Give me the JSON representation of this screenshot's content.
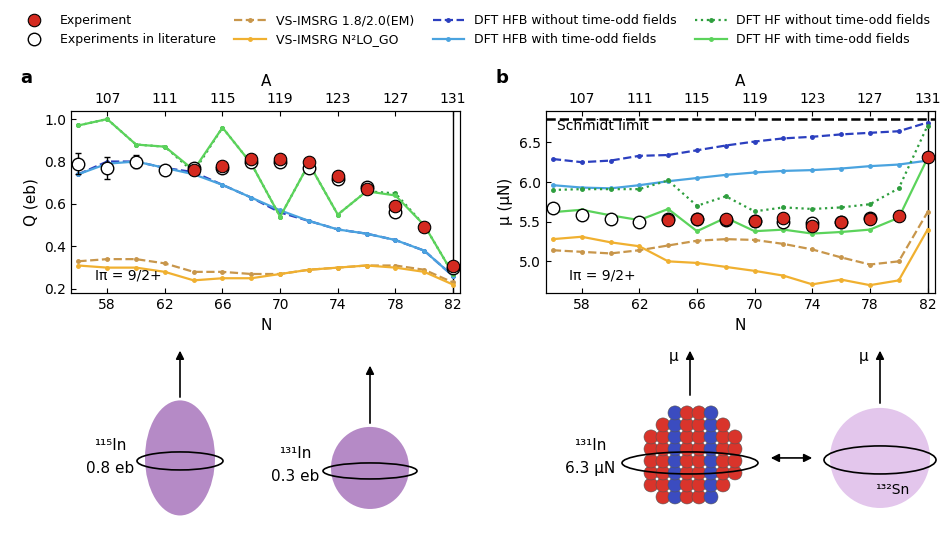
{
  "chart_data": [
    {
      "type": "line",
      "panel": "a",
      "x_label": "N",
      "x2_label": "A",
      "y_label": "Q (eb)",
      "xlim": [
        55.5,
        82.5
      ],
      "xticks": [
        58,
        62,
        66,
        70,
        74,
        78,
        82
      ],
      "x2lim": [
        104.5,
        131.5
      ],
      "x2ticks": [
        107,
        111,
        115,
        119,
        123,
        127,
        131
      ],
      "ylim": [
        0.18,
        1.04
      ],
      "yticks": [
        0.2,
        0.4,
        0.6,
        0.8,
        1.0
      ],
      "vline": 82,
      "legend": "top",
      "annotations": [
        "Iπ = 9/2+"
      ],
      "illustrations": [
        {
          "nucleus": "¹¹⁵In",
          "text": "0.8 eb"
        },
        {
          "nucleus": "¹³¹In",
          "text": "0.3 eb"
        }
      ],
      "series": [
        {
          "name": "Experiment",
          "color": "#d42a20",
          "marker": "filled circle",
          "line_style": "none",
          "x": [
            64,
            66,
            68,
            70,
            72,
            74,
            76,
            78,
            80,
            82
          ],
          "values": [
            0.76,
            0.78,
            0.81,
            0.81,
            0.8,
            0.73,
            0.67,
            0.59,
            0.49,
            0.31
          ]
        },
        {
          "name": "Experiments in literature",
          "color": "#000000",
          "marker": "open circle",
          "line_style": "none",
          "x": [
            56,
            58,
            60,
            62,
            64,
            66,
            68,
            70,
            72,
            74,
            76,
            78,
            82
          ],
          "values": [
            0.79,
            0.77,
            0.8,
            0.76,
            0.77,
            0.77,
            0.8,
            0.8,
            0.77,
            0.72,
            0.68,
            0.56,
            0.3
          ],
          "errors": [
            0.05,
            0.05,
            0.03,
            0.02,
            0.01,
            0.01,
            0.01,
            0.01,
            0.01,
            0.01,
            0.02,
            0.02,
            0.01
          ]
        },
        {
          "name": "VS-IMSRG 1.8/2.0(EM)",
          "color": "#c8964b",
          "marker": "dot",
          "line_style": "dashed",
          "x": [
            56,
            58,
            60,
            62,
            64,
            66,
            68,
            70,
            72,
            74,
            76,
            78,
            80,
            82
          ],
          "values": [
            0.33,
            0.34,
            0.34,
            0.32,
            0.28,
            0.28,
            0.27,
            0.27,
            0.29,
            0.3,
            0.31,
            0.31,
            0.29,
            0.23
          ]
        },
        {
          "name": "VS-IMSRG N²LO_GO",
          "color": "#f0b030",
          "marker": "dot",
          "line_style": "solid",
          "x": [
            56,
            58,
            60,
            62,
            64,
            66,
            68,
            70,
            72,
            74,
            76,
            78,
            80,
            82
          ],
          "values": [
            0.31,
            0.3,
            0.3,
            0.28,
            0.24,
            0.25,
            0.25,
            0.27,
            0.29,
            0.3,
            0.31,
            0.3,
            0.28,
            0.22
          ]
        },
        {
          "name": "DFT HFB without time-odd fields",
          "color": "#2b3fbf",
          "marker": "dot",
          "line_style": "dashed",
          "x": [
            56,
            58,
            60,
            62,
            64,
            66,
            68,
            70,
            72,
            74,
            76,
            78,
            80,
            82
          ],
          "values": [
            0.74,
            0.8,
            0.8,
            0.77,
            0.75,
            0.69,
            0.63,
            0.56,
            0.52,
            0.48,
            0.46,
            0.43,
            0.38,
            0.26
          ]
        },
        {
          "name": "DFT HFB with time-odd fields",
          "color": "#4aa3df",
          "marker": "dot",
          "line_style": "solid",
          "x": [
            56,
            58,
            60,
            62,
            64,
            66,
            68,
            70,
            72,
            74,
            76,
            78,
            80,
            82
          ],
          "values": [
            0.74,
            0.79,
            0.8,
            0.77,
            0.74,
            0.69,
            0.63,
            0.57,
            0.52,
            0.48,
            0.46,
            0.43,
            0.38,
            0.26
          ]
        },
        {
          "name": "DFT HF without time-odd fields",
          "color": "#2e9e3e",
          "marker": "dot",
          "line_style": "dotted",
          "x": [
            56,
            58,
            60,
            62,
            64,
            66,
            68,
            70,
            72,
            74,
            76,
            78,
            80,
            82
          ],
          "values": [
            0.97,
            1.0,
            0.88,
            0.87,
            0.75,
            0.96,
            0.79,
            0.54,
            0.79,
            0.55,
            0.66,
            0.65,
            0.5,
            0.27
          ]
        },
        {
          "name": "DFT HF with time-odd fields",
          "color": "#5bd35b",
          "marker": "dot",
          "line_style": "solid",
          "x": [
            56,
            58,
            60,
            62,
            64,
            66,
            68,
            70,
            72,
            74,
            76,
            78,
            80,
            82
          ],
          "values": [
            0.97,
            1.0,
            0.88,
            0.87,
            0.76,
            0.96,
            0.79,
            0.54,
            0.79,
            0.55,
            0.66,
            0.64,
            0.5,
            0.27
          ]
        }
      ]
    },
    {
      "type": "line",
      "panel": "b",
      "x_label": "N",
      "x2_label": "A",
      "y_label": "μ (μN)",
      "xlim": [
        55.5,
        82.5
      ],
      "xticks": [
        58,
        62,
        66,
        70,
        74,
        78,
        82
      ],
      "x2lim": [
        104.5,
        131.5
      ],
      "x2ticks": [
        107,
        111,
        115,
        119,
        123,
        127,
        131
      ],
      "ylim": [
        4.6,
        6.9
      ],
      "yticks": [
        5.0,
        5.5,
        6.0,
        6.5
      ],
      "vline": 82,
      "hline": {
        "value": 6.79,
        "label": "Schmidt limit"
      },
      "annotations": [
        "Iπ = 9/2+"
      ],
      "illustrations": [
        {
          "nucleus": "¹³¹In",
          "text": "6.3 μN",
          "arrow_label": "μ"
        },
        {
          "nucleus": "¹³²Sn",
          "arrow_label": "μ"
        }
      ],
      "series": [
        {
          "name": "Experiment",
          "color": "#d42a20",
          "marker": "filled circle",
          "line_style": "none",
          "x": [
            64,
            66,
            68,
            70,
            72,
            74,
            76,
            78,
            80,
            82
          ],
          "values": [
            5.52,
            5.53,
            5.54,
            5.51,
            5.55,
            5.44,
            5.5,
            5.53,
            5.57,
            6.31
          ],
          "errors": [
            0.03,
            0.03,
            0.03,
            0.06,
            0.06,
            0.03,
            0.03,
            0.03,
            0.03,
            0.03
          ]
        },
        {
          "name": "Experiments in literature",
          "color": "#000000",
          "marker": "open circle",
          "line_style": "none",
          "x": [
            56,
            58,
            60,
            62,
            64,
            66,
            68,
            70,
            72,
            74,
            76,
            78
          ],
          "values": [
            5.67,
            5.58,
            5.53,
            5.5,
            5.53,
            5.53,
            5.52,
            5.51,
            5.5,
            5.48,
            5.5,
            5.55
          ],
          "errors": [
            0.01,
            0.01,
            0.01,
            0.01,
            0.01,
            0.01,
            0.01,
            0.06,
            0.01,
            0.01,
            0.01,
            0.01
          ]
        },
        {
          "name": "VS-IMSRG 1.8/2.0(EM)",
          "color": "#c8964b",
          "marker": "dot",
          "line_style": "dashed",
          "x": [
            56,
            58,
            60,
            62,
            64,
            66,
            68,
            70,
            72,
            74,
            76,
            78,
            80,
            82
          ],
          "values": [
            5.14,
            5.12,
            5.1,
            5.14,
            5.2,
            5.26,
            5.28,
            5.27,
            5.22,
            5.15,
            5.05,
            4.96,
            5.0,
            5.62
          ]
        },
        {
          "name": "VS-IMSRG N²LO_GO",
          "color": "#f0b030",
          "marker": "dot",
          "line_style": "solid",
          "x": [
            56,
            58,
            60,
            62,
            64,
            66,
            68,
            70,
            72,
            74,
            76,
            78,
            80,
            82
          ],
          "values": [
            5.28,
            5.31,
            5.24,
            5.19,
            5.0,
            4.98,
            4.93,
            4.88,
            4.82,
            4.71,
            4.77,
            4.7,
            4.76,
            5.4
          ]
        },
        {
          "name": "DFT HFB without time-odd fields",
          "color": "#2b3fbf",
          "marker": "dot",
          "line_style": "dashed",
          "x": [
            56,
            58,
            60,
            62,
            64,
            66,
            68,
            70,
            72,
            74,
            76,
            78,
            80,
            82
          ],
          "values": [
            6.29,
            6.25,
            6.27,
            6.33,
            6.34,
            6.4,
            6.46,
            6.51,
            6.55,
            6.57,
            6.6,
            6.62,
            6.64,
            6.75
          ]
        },
        {
          "name": "DFT HFB with time-odd fields",
          "color": "#4aa3df",
          "marker": "dot",
          "line_style": "solid",
          "x": [
            56,
            58,
            60,
            62,
            64,
            66,
            68,
            70,
            72,
            74,
            76,
            78,
            80,
            82
          ],
          "values": [
            5.96,
            5.93,
            5.92,
            5.96,
            6.01,
            6.05,
            6.09,
            6.12,
            6.14,
            6.15,
            6.17,
            6.2,
            6.22,
            6.27
          ]
        },
        {
          "name": "DFT HF without time-odd fields",
          "color": "#2e9e3e",
          "marker": "dot",
          "line_style": "dotted",
          "x": [
            56,
            58,
            60,
            62,
            64,
            66,
            68,
            70,
            72,
            74,
            76,
            78,
            80,
            82
          ],
          "values": [
            5.9,
            5.91,
            5.91,
            5.91,
            6.02,
            5.7,
            5.82,
            5.63,
            5.68,
            5.66,
            5.68,
            5.72,
            5.92,
            6.71
          ]
        },
        {
          "name": "DFT HF with time-odd fields",
          "color": "#5bd35b",
          "marker": "dot",
          "line_style": "solid",
          "x": [
            56,
            58,
            60,
            62,
            64,
            66,
            68,
            70,
            72,
            74,
            76,
            78,
            80,
            82
          ],
          "values": [
            5.62,
            5.65,
            5.58,
            5.52,
            5.66,
            5.38,
            5.55,
            5.38,
            5.4,
            5.35,
            5.37,
            5.4,
            5.55,
            6.3
          ]
        }
      ]
    }
  ]
}
